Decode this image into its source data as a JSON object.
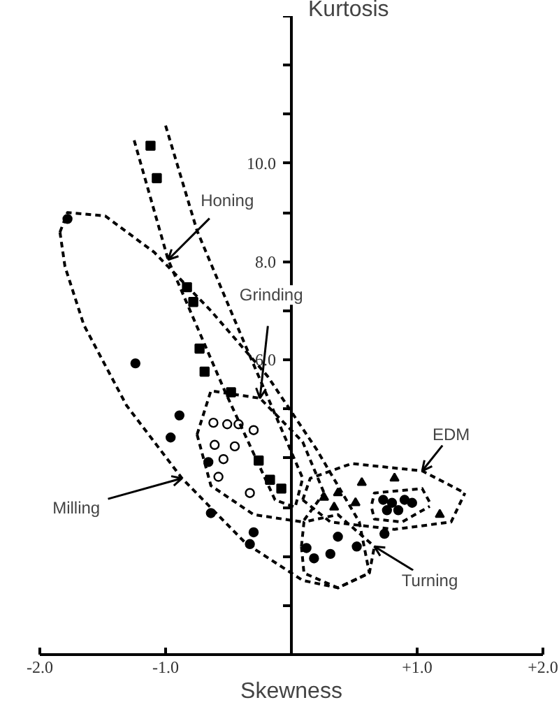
{
  "chart_data": {
    "type": "scatter",
    "xlabel": "Skewness",
    "ylabel": "Kurtosis",
    "xlim": [
      -2.0,
      2.0
    ],
    "ylim": [
      0,
      13
    ],
    "xticks": [
      {
        "value": -2,
        "label": "-2.0"
      },
      {
        "value": -1,
        "label": "-1.0"
      },
      {
        "value": 1,
        "label": "+1.0"
      },
      {
        "value": 2,
        "label": "+2.0"
      }
    ],
    "yticks": [
      {
        "value": 1,
        "label": null
      },
      {
        "value": 2,
        "label": null
      },
      {
        "value": 3,
        "label": null
      },
      {
        "value": 4,
        "label": null
      },
      {
        "value": 5,
        "label": null
      },
      {
        "value": 6,
        "label": "6.0"
      },
      {
        "value": 7,
        "label": null
      },
      {
        "value": 8,
        "label": "8.0"
      },
      {
        "value": 9,
        "label": null
      },
      {
        "value": 10,
        "label": "10.0"
      },
      {
        "value": 11,
        "label": null
      },
      {
        "value": 12,
        "label": null
      },
      {
        "value": 13,
        "label": null
      }
    ],
    "grid": false,
    "series": [
      {
        "marker": "square",
        "color": "#000000",
        "x": [
          -1.12,
          -1.07,
          -0.83,
          -0.78,
          -0.73,
          -0.69,
          -0.48,
          -0.26,
          -0.17,
          -0.08
        ],
        "values": [
          10.36,
          9.7,
          7.48,
          7.18,
          6.23,
          5.76,
          5.34,
          3.95,
          3.56,
          3.38
        ]
      },
      {
        "marker": "circle",
        "color": "#000000",
        "x": [
          -1.78,
          -1.24,
          -0.89,
          -0.96,
          -0.66,
          -0.64,
          -0.3,
          -0.33
        ],
        "values": [
          8.87,
          5.93,
          4.87,
          4.42,
          3.92,
          2.88,
          2.49,
          2.25
        ]
      },
      {
        "marker": "circle",
        "color": "#ffffff",
        "x": [
          -0.62,
          -0.51,
          -0.42,
          -0.3,
          -0.61,
          -0.54,
          -0.58,
          -0.33,
          -0.45
        ],
        "values": [
          4.72,
          4.69,
          4.69,
          4.57,
          4.27,
          3.98,
          3.62,
          3.29,
          4.24
        ]
      },
      {
        "marker": "triangle",
        "color": "#000000",
        "x": [
          0.56,
          0.82,
          1.18,
          0.26,
          0.37,
          0.51,
          0.34
        ],
        "values": [
          3.5,
          3.59,
          2.85,
          3.2,
          3.29,
          3.09,
          3.0
        ]
      },
      {
        "marker": "circle",
        "color": "#000000",
        "x": [
          0.73,
          0.8,
          0.9,
          0.96,
          0.76,
          0.85,
          0.37,
          0.12,
          0.18,
          0.31,
          0.52,
          0.74
        ],
        "values": [
          3.15,
          3.09,
          3.15,
          3.09,
          2.94,
          2.94,
          2.4,
          2.17,
          1.96,
          2.05,
          2.2,
          2.46
        ]
      },
      {
        "type": "line",
        "line_style": "dashed",
        "marker": "none",
        "color": "#000000",
        "x": [
          -1.84,
          -1.78,
          -1.48,
          -1.09,
          -0.64,
          -0.19,
          0.2,
          0.54,
          0.62
        ],
        "values": [
          8.6,
          9.0,
          8.93,
          8.19,
          7.0,
          5.67,
          4.18,
          2.7,
          1.66
        ]
      },
      {
        "type": "line",
        "line_style": "dashed",
        "marker": "none",
        "color": "#000000",
        "x": [
          -1.84,
          -1.8,
          -1.65,
          -1.31,
          -0.87,
          -0.36,
          0.09,
          0.37,
          0.62
        ],
        "values": [
          8.6,
          7.9,
          6.71,
          5.07,
          3.59,
          2.26,
          1.51,
          1.36,
          1.66
        ]
      },
      {
        "type": "line",
        "line_style": "dashed",
        "marker": "none",
        "color": "#000000",
        "x": [
          -1.25,
          -0.98,
          -0.53,
          -0.13,
          0.03,
          0.09
        ],
        "values": [
          10.47,
          8.04,
          5.37,
          3.15,
          3.0,
          3.59
        ]
      },
      {
        "type": "line",
        "line_style": "dashed",
        "marker": "none",
        "color": "#000000",
        "x": [
          -1.0,
          -0.75,
          -0.36,
          0.09
        ],
        "values": [
          10.77,
          8.63,
          6.26,
          3.59
        ]
      },
      {
        "type": "line",
        "line_style": "dashed",
        "marker": "none",
        "color": "#000000",
        "x": [
          -0.75,
          -0.64,
          -0.25,
          0.09,
          0.26
        ],
        "values": [
          4.48,
          5.37,
          5.22,
          4.33,
          3.29
        ]
      },
      {
        "type": "line",
        "line_style": "dashed",
        "marker": "none",
        "color": "#000000",
        "x": [
          -0.75,
          -0.64,
          -0.3,
          0.09,
          0.26
        ],
        "values": [
          4.48,
          3.44,
          2.85,
          2.7,
          3.29
        ]
      },
      {
        "type": "line",
        "line_style": "dashed",
        "marker": "none",
        "color": "#000000",
        "x": [
          0.09,
          0.15,
          0.48,
          1.04,
          1.38
        ],
        "values": [
          3.15,
          3.59,
          3.89,
          3.74,
          3.29
        ]
      },
      {
        "type": "line",
        "line_style": "dashed",
        "marker": "none",
        "color": "#000000",
        "x": [
          0.09,
          0.31,
          0.82,
          1.27,
          1.38
        ],
        "values": [
          3.15,
          2.7,
          2.55,
          2.7,
          3.29
        ]
      },
      {
        "type": "line",
        "line_style": "dashed",
        "marker": "none",
        "color": "#000000",
        "x": [
          0.64,
          0.66,
          1.04,
          1.1
        ],
        "values": [
          3.07,
          3.29,
          3.38,
          3.1
        ]
      },
      {
        "type": "line",
        "line_style": "dashed",
        "marker": "none",
        "color": "#000000",
        "x": [
          0.64,
          0.66,
          0.88,
          1.1
        ],
        "values": [
          2.97,
          2.76,
          2.7,
          3.02
        ]
      },
      {
        "type": "line",
        "line_style": "dashed",
        "marker": "none",
        "color": "#000000",
        "x": [
          0.08,
          0.1,
          0.37,
          0.66
        ],
        "values": [
          2.2,
          2.7,
          2.85,
          2.2
        ]
      },
      {
        "type": "line",
        "line_style": "dashed",
        "marker": "none",
        "color": "#000000",
        "x": [
          0.08,
          0.1,
          0.37,
          0.62,
          0.66
        ],
        "values": [
          2.2,
          1.66,
          1.36,
          1.66,
          2.2
        ]
      }
    ],
    "annotations": [
      {
        "text": "Honing",
        "x": -0.98,
        "y": 8.04
      },
      {
        "text": "Grinding",
        "x": -0.25,
        "y": 5.22
      },
      {
        "text": "EDM",
        "x": 1.04,
        "y": 3.74
      },
      {
        "text": "Milling",
        "x": -0.87,
        "y": 3.59
      },
      {
        "text": "Turning",
        "x": 0.66,
        "y": 2.2
      }
    ]
  }
}
